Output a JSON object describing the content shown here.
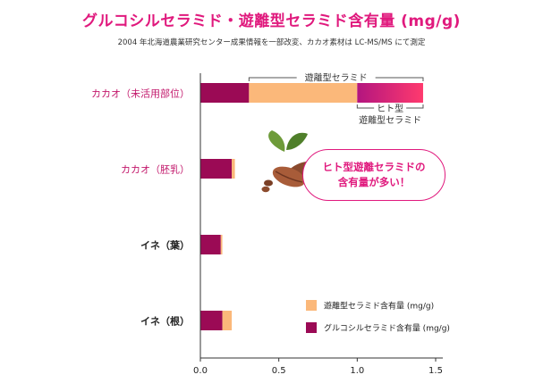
{
  "chart_data": {
    "type": "bar",
    "orientation": "horizontal",
    "stacked": true,
    "title": "グルコシルセラミド・遊離型セラミド含有量 (mg/g)",
    "subtitle": "2004 年北海道農業研究センター成果情報を一部改変、カカオ素材は LC-MS/MS にて測定",
    "categories": [
      "カカオ（未活用部位）",
      "カカオ（胚乳）",
      "イネ（葉）",
      "イネ（根）"
    ],
    "series": [
      {
        "name": "グルコシルセラミド含有量 (mg/g)",
        "color": "#9b0a55",
        "values": [
          0.31,
          0.2,
          0.13,
          0.14
        ]
      },
      {
        "name": "遊離型セラミド含有量 (mg/g)",
        "color": "#fbb87a",
        "values": [
          0.69,
          0.02,
          0.01,
          0.06
        ]
      },
      {
        "name": "ヒト型遊離セラミド",
        "color": "#e8207a",
        "values": [
          0.42,
          0,
          0,
          0
        ]
      }
    ],
    "legend_series": [
      1,
      0
    ],
    "xlim": [
      0,
      1.5
    ],
    "xticks": [
      "0.0",
      "0.5",
      "1.0",
      "1.5"
    ],
    "legend_position": "bottom-right",
    "annotations": {
      "bracket_top": "遊離型セラミド",
      "bracket_bottom_line1": "ヒト型",
      "bracket_bottom_line2": "遊離型セラミド",
      "callout_line1": "ヒト型遊離セラミドの",
      "callout_line2": "含有量が多い！"
    }
  }
}
